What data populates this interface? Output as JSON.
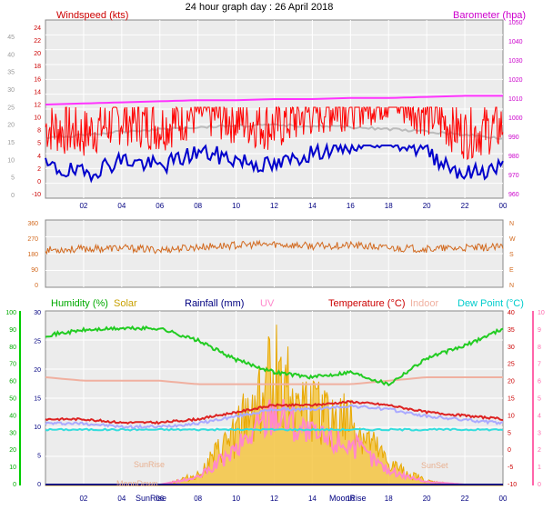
{
  "title": "24 hour graph day : 26 April 2018",
  "x_ticks": [
    "02",
    "04",
    "06",
    "08",
    "10",
    "12",
    "14",
    "16",
    "18",
    "20",
    "22",
    "00"
  ],
  "colors": {
    "windspeed": "#ff0000",
    "windavg": "#0000cc",
    "barometer": "#ff00ff",
    "gust": "#c0c0c0",
    "direction": "#d2691e",
    "humidity": "#22cc22",
    "solar": "#f0c040",
    "rainfall": "#000080",
    "uv": "#ff88cc",
    "temperature": "#cc0000",
    "indoor": "#f0b0a0",
    "dewpoint": "#33dddd",
    "panel_bg": "#ececec",
    "axis_left_green": "#00cc00",
    "axis_right_pink": "#ff66aa"
  },
  "panel1": {
    "left_label": "Windspeed (kts)",
    "right_label": "Barometer (hpa)",
    "left_ticks": [
      "-10",
      "0",
      "2",
      "4",
      "5",
      "8",
      "10",
      "12",
      "14",
      "16",
      "18",
      "20",
      "22",
      "24"
    ],
    "left_outer_ticks": [
      "0",
      "5",
      "10",
      "15",
      "20",
      "25",
      "30",
      "35",
      "40",
      "45"
    ],
    "right_ticks": [
      "960",
      "970",
      "980",
      "990",
      "1000",
      "1010",
      "1020",
      "1030",
      "1040",
      "1050"
    ]
  },
  "panel2": {
    "left_ticks": [
      "0",
      "90",
      "180",
      "270",
      "360"
    ],
    "right_ticks": [
      "N",
      "E",
      "S",
      "W",
      "N"
    ]
  },
  "panel3": {
    "labels": {
      "humidity": "Humidity (%)",
      "solar": "Solar",
      "rainfall": "Rainfall (mm)",
      "uv": "UV",
      "temperature": "Temperature (°C)",
      "indoor": "Indoor",
      "dewpoint": "Dew Point (°C)"
    },
    "humidity_ticks": [
      "0",
      "10",
      "20",
      "30",
      "40",
      "50",
      "60",
      "70",
      "80",
      "90",
      "100"
    ],
    "rain_ticks": [
      "0",
      "5",
      "10",
      "15",
      "20",
      "25",
      "30"
    ],
    "temp_ticks": [
      "-10",
      "-5",
      "0",
      "5",
      "10",
      "15",
      "20",
      "25",
      "30",
      "35",
      "40"
    ],
    "uv_ticks": [
      "0",
      "1",
      "2",
      "3",
      "4",
      "5",
      "6",
      "7",
      "8",
      "9",
      "10"
    ],
    "annotations": {
      "sunrise_left": "SunRise",
      "moondown": "MoonDown",
      "sunset": "SunSet",
      "sunrise_axis": "SunRise",
      "moonrise_axis": "MoonRise"
    }
  },
  "chart_data": [
    {
      "type": "line",
      "title": "24 hour graph day : 26 April 2018",
      "xlabel": "",
      "ylabel": "Windspeed (kts)",
      "x": [
        "00",
        "02",
        "04",
        "06",
        "08",
        "10",
        "12",
        "14",
        "16",
        "18",
        "20",
        "22",
        "00"
      ],
      "ylim": [
        -10,
        25
      ],
      "series": [
        {
          "name": "Windspeed (kts)",
          "values": [
            4,
            3,
            5,
            4,
            6,
            5,
            4,
            6,
            7,
            8,
            6,
            3,
            4
          ]
        },
        {
          "name": "Barometer (hpa)",
          "values": [
            1002,
            1003,
            1004,
            1005,
            1006,
            1006,
            1007,
            1007,
            1008,
            1008,
            1009,
            1010,
            1010
          ]
        }
      ]
    },
    {
      "type": "line",
      "ylabel": "",
      "ylim": [
        0,
        360
      ],
      "x": [
        "00",
        "02",
        "04",
        "06",
        "08",
        "10",
        "12",
        "14",
        "16",
        "18",
        "20",
        "22",
        "00"
      ],
      "series": [
        {
          "values": [
            200,
            205,
            210,
            200,
            215,
            225,
            230,
            220,
            225,
            210,
            205,
            210,
            215
          ]
        }
      ]
    },
    {
      "type": "line",
      "x": [
        "00",
        "02",
        "04",
        "06",
        "08",
        "10",
        "12",
        "14",
        "16",
        "18",
        "20",
        "22",
        "00"
      ],
      "series": [
        {
          "name": "Humidity (%)",
          "values": [
            86,
            89,
            90,
            90,
            83,
            72,
            65,
            62,
            65,
            58,
            73,
            80,
            90
          ]
        },
        {
          "name": "Temperature (°C)",
          "values": [
            9,
            9,
            8,
            8,
            9,
            11,
            13,
            13,
            14,
            13,
            11,
            10,
            9
          ]
        },
        {
          "name": "Indoor",
          "values": [
            21,
            20,
            20,
            20,
            19,
            19,
            19,
            19,
            19,
            20,
            21,
            21,
            21
          ]
        },
        {
          "name": "Dew Point (°C)",
          "values": [
            6,
            6,
            6,
            6,
            6,
            6,
            6,
            6,
            6,
            6,
            6,
            6,
            6
          ]
        },
        {
          "name": "Solar",
          "values": [
            0,
            0,
            0,
            0,
            5,
            25,
            55,
            35,
            30,
            10,
            2,
            0,
            0
          ]
        }
      ]
    }
  ]
}
